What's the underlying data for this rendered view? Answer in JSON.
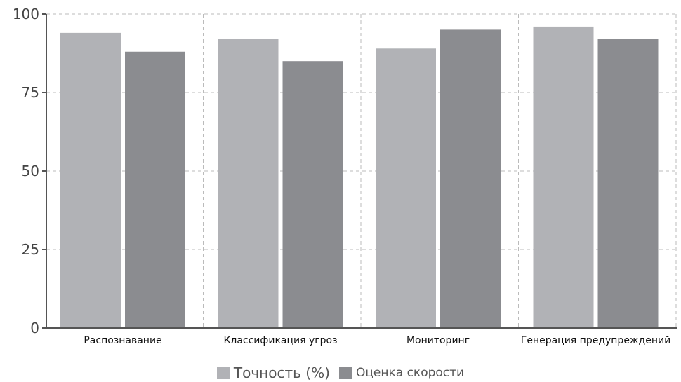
{
  "chart_data": {
    "type": "bar",
    "categories": [
      "Распознавание",
      "Классификация угроз",
      "Мониторинг",
      "Генерация предупреждений"
    ],
    "series": [
      {
        "name": "Точность (%)",
        "values": [
          94,
          92,
          89,
          96
        ],
        "color": "#b1b2b6"
      },
      {
        "name": "Оценка скорости",
        "values": [
          88,
          85,
          95,
          92
        ],
        "color": "#8b8c90"
      }
    ],
    "ylim": [
      0,
      100
    ],
    "yticks": [
      "0",
      "25",
      "50",
      "75",
      "100"
    ],
    "grid": true,
    "legend_position": "bottom-center",
    "colors": {
      "axis": "#555555",
      "grid": "#bbbbbb"
    }
  }
}
